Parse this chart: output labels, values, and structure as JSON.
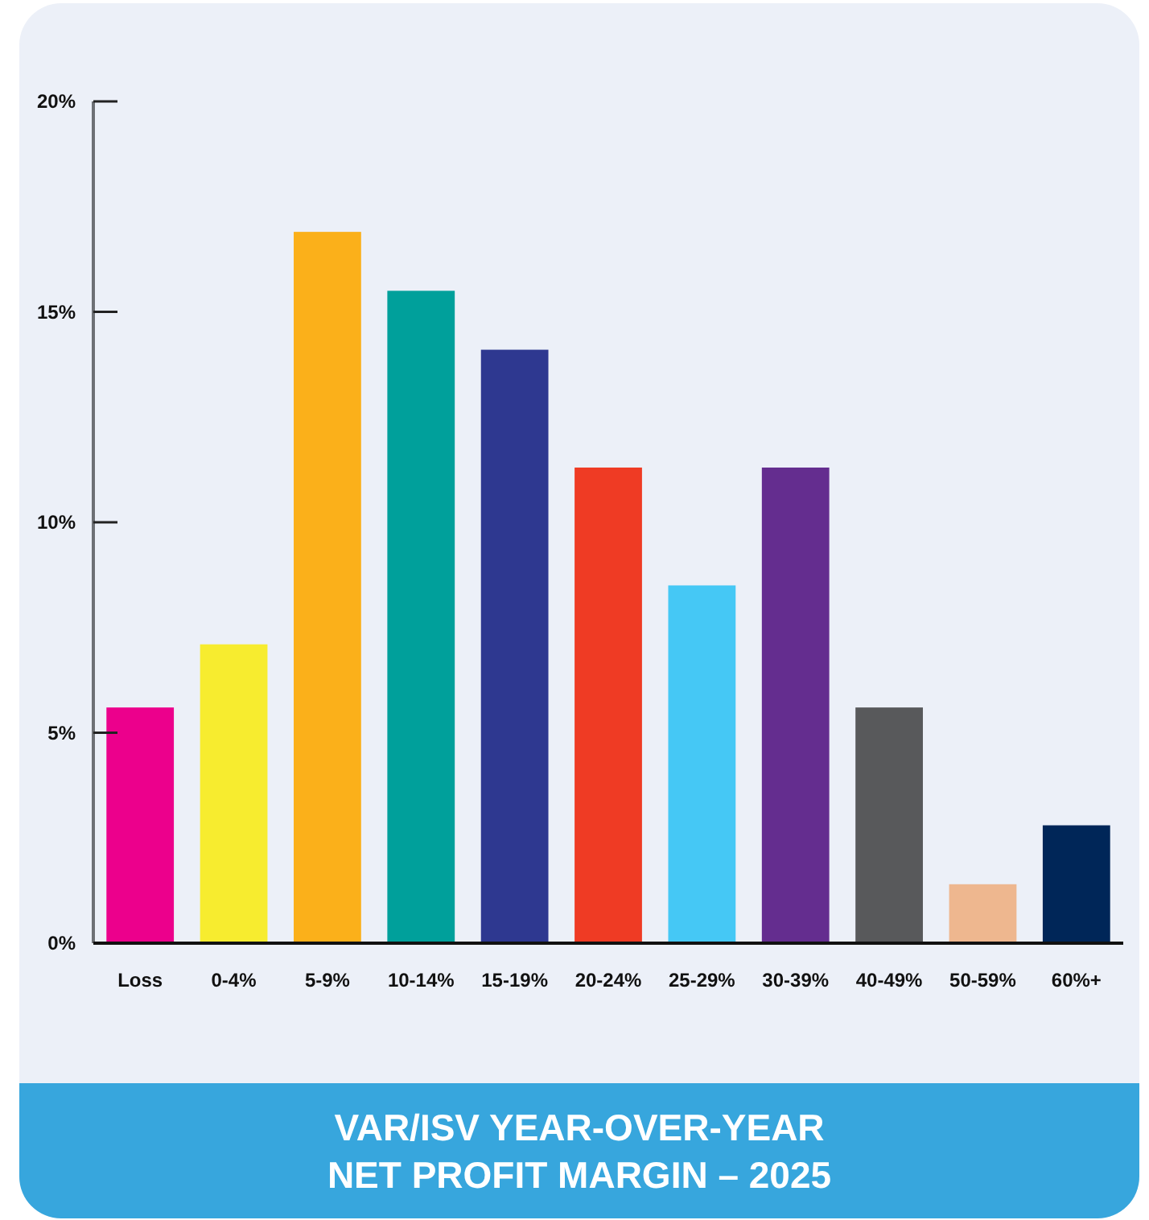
{
  "chart_data": {
    "type": "bar",
    "title": "VAR/ISV YEAR-OVER-YEAR NET PROFIT MARGIN – 2025",
    "categories": [
      "Loss",
      "0-4%",
      "5-9%",
      "10-14%",
      "15-19%",
      "20-24%",
      "25-29%",
      "30-39%",
      "40-49%",
      "50-59%",
      "60%+"
    ],
    "values": [
      5.6,
      7.1,
      16.9,
      15.5,
      14.1,
      11.3,
      8.5,
      11.3,
      5.6,
      1.4,
      2.8
    ],
    "colors": [
      "#ec008c",
      "#f7ec2f",
      "#fbb01a",
      "#00a09b",
      "#2e3890",
      "#ef3b24",
      "#45c8f5",
      "#642d8f",
      "#58595b",
      "#eeb78f",
      "#002658"
    ],
    "ylim": [
      0,
      20
    ],
    "yticks": [
      {
        "value": 0,
        "label": "0%"
      },
      {
        "value": 5,
        "label": "5%"
      },
      {
        "value": 10,
        "label": "10%"
      },
      {
        "value": 15,
        "label": "15%"
      },
      {
        "value": 20,
        "label": "20%"
      }
    ]
  }
}
